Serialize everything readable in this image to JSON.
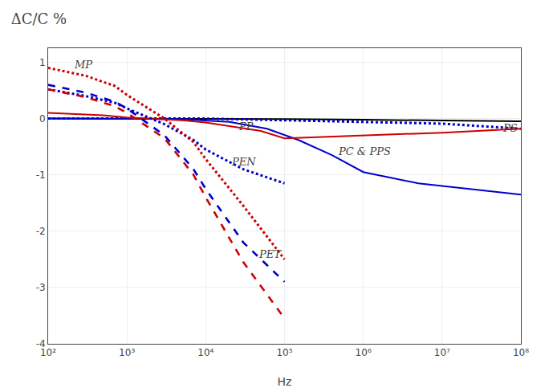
{
  "chart_data": {
    "type": "line",
    "title": "ΔC/C %",
    "x_label": "Hz",
    "log": "x",
    "grid": true,
    "xlim": [
      100,
      100000000
    ],
    "xticks": [
      {
        "value": 100,
        "label": "10²"
      },
      {
        "value": 1000,
        "label": "10³"
      },
      {
        "value": 10000,
        "label": "10⁴"
      },
      {
        "value": 100000,
        "label": "10⁵"
      },
      {
        "value": 1000000,
        "label": "10⁶"
      },
      {
        "value": 10000000,
        "label": "10⁷"
      },
      {
        "value": 100000000,
        "label": "10⁸"
      }
    ],
    "ylim": [
      -4,
      1.25
    ],
    "yticks": [
      -4,
      -3,
      -2,
      -1,
      0,
      1
    ],
    "series": [
      {
        "color": "#000000",
        "line_style": "solid",
        "x": [
          100,
          1000,
          10000,
          100000,
          1000000,
          10000000,
          100000000
        ],
        "values": [
          0.0,
          0.0,
          0.0,
          -0.01,
          -0.02,
          -0.03,
          -0.05
        ]
      },
      {
        "color": "#0000cc",
        "line_style": "dotted",
        "x": [
          100,
          1000,
          10000,
          100000,
          1000000,
          10000000,
          100000000
        ],
        "values": [
          0.0,
          0.0,
          0.0,
          -0.03,
          -0.06,
          -0.09,
          -0.18
        ]
      },
      {
        "color": "#0000cc",
        "line_style": "solid",
        "x": [
          100,
          1000,
          5000,
          20000,
          60000,
          150000,
          400000,
          1000000,
          5000000,
          100000000
        ],
        "values": [
          0.0,
          0.0,
          -0.01,
          -0.06,
          -0.18,
          -0.38,
          -0.65,
          -0.95,
          -1.15,
          -1.35
        ]
      },
      {
        "color": "#cc0000",
        "line_style": "solid",
        "x": [
          100,
          500,
          1000,
          5000,
          10000,
          50000,
          100000,
          1000000,
          10000000,
          100000000
        ],
        "values": [
          0.1,
          0.06,
          0.02,
          -0.03,
          -0.07,
          -0.22,
          -0.35,
          -0.3,
          -0.25,
          -0.18
        ]
      },
      {
        "color": "#0000cc",
        "line_style": "dotted",
        "x": [
          100,
          300,
          700,
          1000,
          3000,
          7000,
          10000,
          30000,
          100000
        ],
        "values": [
          0.52,
          0.4,
          0.28,
          0.18,
          -0.1,
          -0.38,
          -0.55,
          -0.9,
          -1.15
        ]
      },
      {
        "color": "#0000cc",
        "line_style": "dashed",
        "x": [
          100,
          300,
          700,
          1000,
          3000,
          7000,
          10000,
          30000,
          100000
        ],
        "values": [
          0.6,
          0.46,
          0.3,
          0.18,
          -0.3,
          -0.9,
          -1.25,
          -2.2,
          -2.9
        ]
      },
      {
        "color": "#cc0000",
        "line_style": "dotted",
        "x": [
          100,
          300,
          700,
          1000,
          3000,
          7000,
          10000,
          30000,
          100000
        ],
        "values": [
          0.9,
          0.76,
          0.58,
          0.42,
          0.0,
          -0.42,
          -0.72,
          -1.55,
          -2.5
        ]
      },
      {
        "color": "#cc0000",
        "line_style": "dashed",
        "x": [
          100,
          300,
          700,
          1000,
          3000,
          7000,
          10000,
          30000,
          100000
        ],
        "values": [
          0.52,
          0.38,
          0.22,
          0.1,
          -0.35,
          -1.0,
          -1.4,
          -2.55,
          -3.55
        ]
      }
    ],
    "annotations": [
      {
        "text": "PS",
        "x": 55000000,
        "y": -0.3
      },
      {
        "text": "PC & PPS",
        "x": 450000,
        "y": -0.72
      },
      {
        "text": "PP",
        "x": 25000,
        "y": -0.27
      },
      {
        "text": "PEN",
        "x": 20000,
        "y": -0.9
      },
      {
        "text": "PET",
        "x": 45000,
        "y": -2.55
      },
      {
        "text": "MP",
        "x": 200,
        "y": 0.82
      }
    ]
  }
}
